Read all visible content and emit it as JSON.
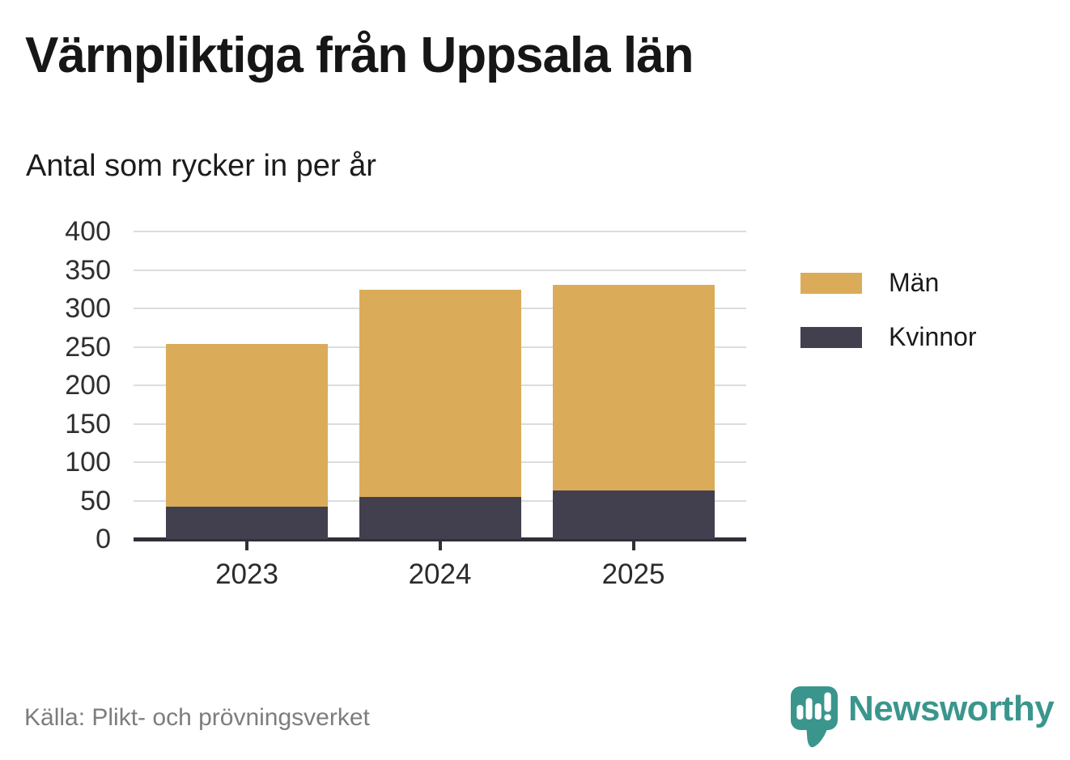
{
  "header": {
    "title": "Värnpliktiga från Uppsala län",
    "subtitle": "Antal som rycker in per år"
  },
  "chart_data": {
    "type": "bar",
    "stacked": true,
    "title": "Värnpliktiga från Uppsala län",
    "subtitle": "Antal som rycker in per år",
    "categories": [
      "2023",
      "2024",
      "2025"
    ],
    "series": [
      {
        "name": "Kvinnor",
        "color": "#42404f",
        "values": [
          42,
          55,
          63
        ]
      },
      {
        "name": "Män",
        "color": "#daac5a",
        "values": [
          212,
          269,
          268
        ]
      }
    ],
    "stack_totals": [
      254,
      324,
      331
    ],
    "ylabel": "",
    "xlabel": "",
    "ylim": [
      0,
      400
    ],
    "yticks": [
      0,
      50,
      100,
      150,
      200,
      250,
      300,
      350,
      400
    ],
    "grid": "horizontal",
    "legend_position": "right",
    "legend_order": [
      "Män",
      "Kvinnor"
    ]
  },
  "legend": {
    "items": [
      {
        "label": "Män",
        "color": "#daac5a"
      },
      {
        "label": "Kvinnor",
        "color": "#42404f"
      }
    ]
  },
  "footer": {
    "source": "Källa: Plikt- och prövningsverket",
    "brand": "Newsworthy"
  },
  "colors": {
    "men_gold": "#daac5a",
    "women_navy": "#42404f",
    "axis": "#30303a",
    "grid": "#dcdcdc",
    "title_text": "#161616",
    "tick_label": "#2f2f2f",
    "source_text": "#7d7d7d",
    "brand_teal": "#3a968d",
    "background": "#ffffff"
  },
  "icons": {
    "brand_logo": "newsworthy-speech-bubble-bar-chart-icon"
  }
}
